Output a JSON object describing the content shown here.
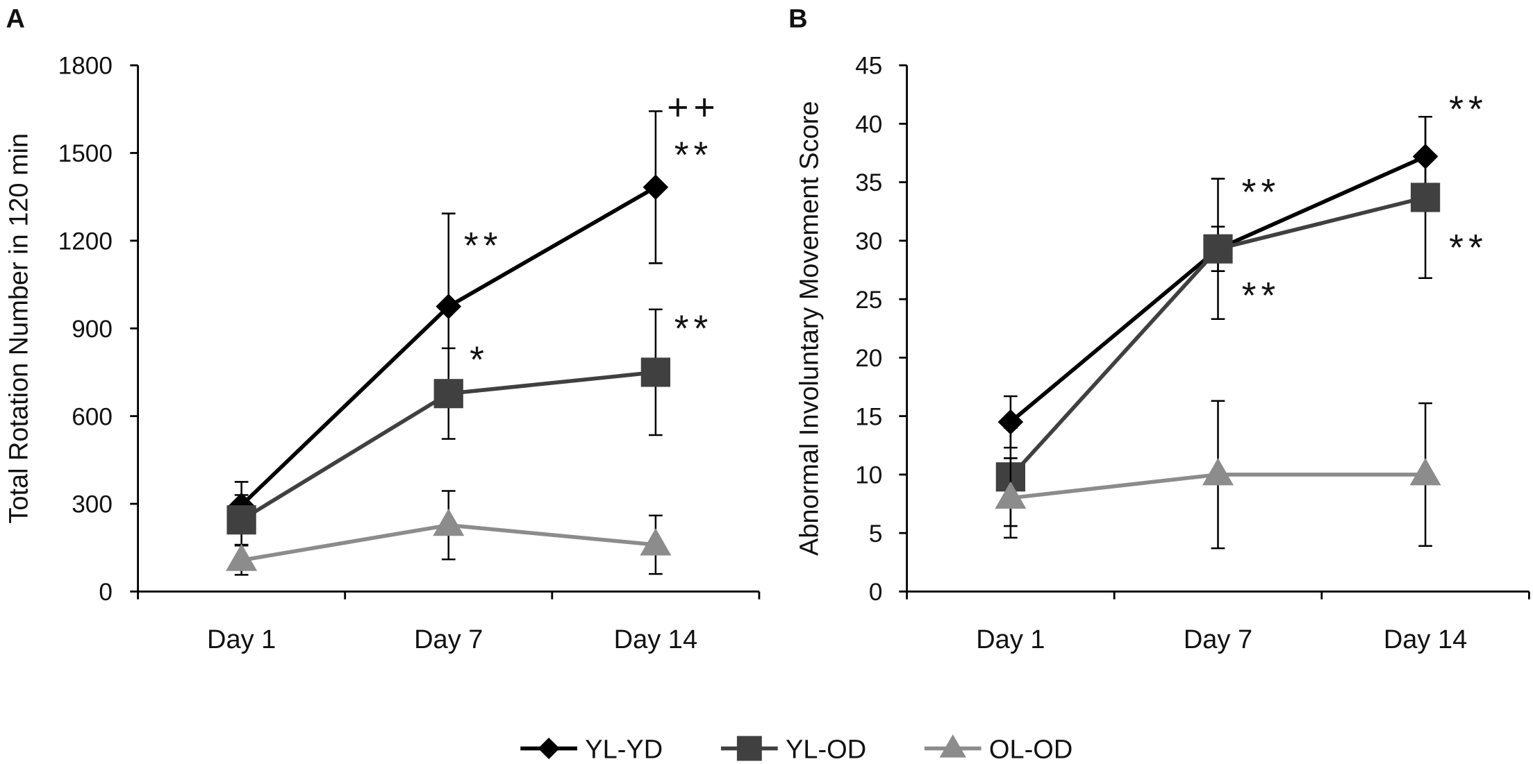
{
  "chart_data": [
    {
      "panel_label": "A",
      "type": "line",
      "categories": [
        "Day 1",
        "Day 7",
        "Day 14"
      ],
      "ylabel": "Total Rotation Number in 120 min",
      "ylim": [
        0,
        1800
      ],
      "yticks": [
        0,
        300,
        600,
        900,
        1200,
        1500,
        1800
      ],
      "grid": false,
      "series": [
        {
          "name": "YL-YD",
          "marker": "diamond",
          "color": "#000000",
          "values": [
            295,
            975,
            1383
          ],
          "error": [
            80,
            318,
            260
          ]
        },
        {
          "name": "YL-OD",
          "marker": "square",
          "color": "#404040",
          "values": [
            245,
            677,
            750
          ],
          "error": [
            85,
            155,
            215
          ]
        },
        {
          "name": "OL-OD",
          "marker": "triangle",
          "color": "#8c8c8c",
          "values": [
            107,
            227,
            160
          ],
          "error": [
            50,
            117,
            100
          ]
        }
      ],
      "annotations": [
        {
          "text": "++",
          "series": "YL-YD",
          "category": "Day 14"
        },
        {
          "text": "**",
          "series": "YL-YD",
          "category": "Day 14"
        },
        {
          "text": "**",
          "series": "YL-YD",
          "category": "Day 7"
        },
        {
          "text": "*",
          "series": "YL-OD",
          "category": "Day 7"
        },
        {
          "text": "**",
          "series": "YL-OD",
          "category": "Day 14"
        }
      ]
    },
    {
      "panel_label": "B",
      "type": "line",
      "categories": [
        "Day 1",
        "Day 7",
        "Day 14"
      ],
      "ylabel": "Abnormal Involuntary Movement Score",
      "ylim": [
        0,
        45
      ],
      "yticks": [
        0,
        5,
        10,
        15,
        20,
        25,
        30,
        35,
        40,
        45
      ],
      "grid": false,
      "series": [
        {
          "name": "YL-YD",
          "marker": "diamond",
          "color": "#000000",
          "values": [
            14.5,
            29.3,
            37.2
          ],
          "error": [
            2.2,
            1.9,
            3.4
          ]
        },
        {
          "name": "YL-OD",
          "marker": "square",
          "color": "#404040",
          "values": [
            9.8,
            29.3,
            33.7
          ],
          "error": [
            4.2,
            6.0,
            6.9
          ]
        },
        {
          "name": "OL-OD",
          "marker": "triangle",
          "color": "#8c8c8c",
          "values": [
            8.0,
            10.0,
            10.0
          ],
          "error": [
            3.4,
            6.3,
            6.1
          ]
        }
      ],
      "annotations": [
        {
          "text": "**",
          "series": "YL-YD",
          "category": "Day 7"
        },
        {
          "text": "**",
          "series": "YL-OD",
          "category": "Day 7"
        },
        {
          "text": "**",
          "series": "YL-YD",
          "category": "Day 14"
        },
        {
          "text": "**",
          "series": "YL-OD",
          "category": "Day 14"
        }
      ]
    }
  ]
}
